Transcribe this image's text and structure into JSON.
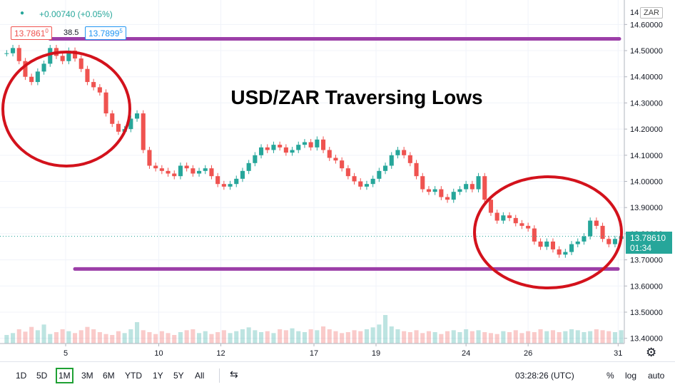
{
  "header": {
    "change": "+0.00740 (+0.05%)",
    "bid": "13.7861",
    "bid_sup": "0",
    "spread": "38.5",
    "ask": "13.7899",
    "ask_sup": "5",
    "symbol_badge": "ZAR"
  },
  "current_price": {
    "value": "13.78610",
    "countdown": "01:34"
  },
  "toolbar": {
    "timeframes": [
      "1D",
      "5D",
      "1M",
      "3M",
      "6M",
      "YTD",
      "1Y",
      "5Y",
      "All"
    ],
    "active": "1M",
    "clock": "03:28:26 (UTC)",
    "percent": "%",
    "log": "log",
    "auto": "auto"
  },
  "colors": {
    "up": "#26a69a",
    "down": "#ef5350",
    "annotation_line": "#9c3fa8",
    "annotation_circle": "#d3121c",
    "price_tag": "#26a69a"
  },
  "chart_data": {
    "type": "line",
    "title": "USD/ZAR Traversing Lows",
    "xlabel": "",
    "ylabel": "",
    "x_ticks": [
      "5",
      "10",
      "12",
      "17",
      "19",
      "24",
      "26",
      "31"
    ],
    "y_ticks": [
      "13.40000",
      "13.50000",
      "13.60000",
      "13.70000",
      "13.80000",
      "13.90000",
      "14.00000",
      "14.10000",
      "14.20000",
      "14.30000",
      "14.40000",
      "14.50000",
      "14.60000"
    ],
    "y_top_partial": "14",
    "ylim": [
      13.38,
      14.68
    ],
    "series": [
      {
        "values": [
          14.49,
          14.51,
          14.46,
          14.4,
          14.38,
          14.42,
          14.45,
          14.51,
          14.48,
          14.46,
          14.5,
          14.47,
          14.43,
          14.38,
          14.36,
          14.34,
          14.26,
          14.22,
          14.19,
          14.2,
          14.24,
          14.26,
          14.12,
          14.06,
          14.05,
          14.04,
          14.03,
          14.02,
          14.06,
          14.05,
          14.03,
          14.04,
          14.05,
          14.02,
          13.99,
          13.98,
          13.99,
          14.01,
          14.04,
          14.07,
          14.1,
          14.13,
          14.12,
          14.14,
          14.13,
          14.11,
          14.12,
          14.14,
          14.15,
          14.13,
          14.16,
          14.12,
          14.09,
          14.08,
          14.05,
          14.02,
          14.0,
          13.98,
          13.99,
          14.01,
          14.04,
          14.06,
          14.1,
          14.12,
          14.1,
          14.07,
          14.02,
          13.97,
          13.96,
          13.97,
          13.94,
          13.93,
          13.96,
          13.97,
          13.99,
          13.97,
          14.02,
          13.93,
          13.88,
          13.85,
          13.87,
          13.86,
          13.84,
          13.83,
          13.82,
          13.77,
          13.75,
          13.77,
          13.74,
          13.72,
          13.73,
          13.76,
          13.77,
          13.79,
          13.85,
          13.83,
          13.78,
          13.76,
          13.78,
          13.79
        ]
      }
    ],
    "volume": [
      18,
      22,
      30,
      25,
      35,
      28,
      40,
      20,
      24,
      30,
      26,
      22,
      28,
      35,
      30,
      24,
      20,
      18,
      26,
      22,
      30,
      45,
      28,
      24,
      20,
      26,
      22,
      18,
      24,
      28,
      30,
      22,
      26,
      20,
      24,
      28,
      22,
      26,
      30,
      34,
      28,
      24,
      26,
      22,
      30,
      28,
      32,
      26,
      24,
      30,
      28,
      36,
      30,
      26,
      22,
      24,
      28,
      26,
      30,
      34,
      40,
      60,
      36,
      30,
      26,
      24,
      28,
      22,
      26,
      24,
      20,
      26,
      28,
      24,
      30,
      26,
      28,
      24,
      22,
      20,
      26,
      24,
      28,
      22,
      26,
      24,
      30,
      26,
      28,
      24,
      26,
      30,
      28,
      24,
      26,
      30,
      28,
      26,
      24,
      28
    ],
    "levels": [
      14.545,
      13.665
    ],
    "grid": true
  }
}
